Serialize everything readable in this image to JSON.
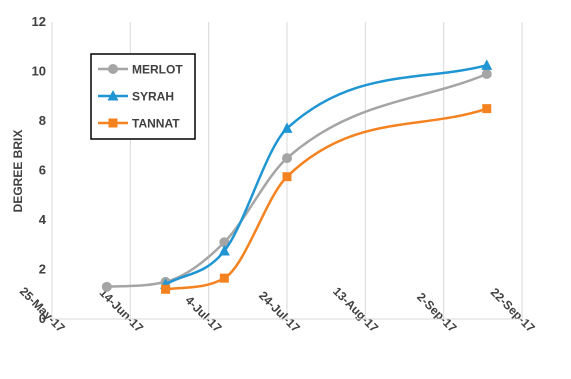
{
  "chart_data": {
    "type": "line",
    "ylabel": "DEGREE BRIX",
    "xlabel": "",
    "ylim": [
      0,
      12
    ],
    "yticks": [
      "0",
      "2",
      "4",
      "6",
      "8",
      "10",
      "12"
    ],
    "xlim": [
      "2017-05-25",
      "2017-09-22"
    ],
    "xticks": [
      {
        "date": "2017-05-25",
        "label": "25-May-17"
      },
      {
        "date": "2017-06-14",
        "label": "14-Jun-17"
      },
      {
        "date": "2017-07-04",
        "label": "4-Jul-17"
      },
      {
        "date": "2017-07-24",
        "label": "24-Jul-17"
      },
      {
        "date": "2017-08-13",
        "label": "13-Aug-17"
      },
      {
        "date": "2017-09-02",
        "label": "2-Sep-17"
      },
      {
        "date": "2017-09-22",
        "label": "22-Sep-17"
      }
    ],
    "grid": "vertical",
    "legend_position": "top-left",
    "smooth": true,
    "series": [
      {
        "name": "MERLOT",
        "color": "#A5A5A5",
        "marker": "circle",
        "points": [
          {
            "x": "2017-06-08",
            "y": 1.3
          },
          {
            "x": "2017-06-23",
            "y": 1.5
          },
          {
            "x": "2017-07-08",
            "y": 3.1
          },
          {
            "x": "2017-07-24",
            "y": 6.5
          },
          {
            "x": "2017-09-13",
            "y": 9.9
          }
        ]
      },
      {
        "name": "SYRAH",
        "color": "#1F96D3",
        "marker": "triangle",
        "points": [
          {
            "x": "2017-06-23",
            "y": 1.4
          },
          {
            "x": "2017-07-08",
            "y": 2.75
          },
          {
            "x": "2017-07-24",
            "y": 7.7
          },
          {
            "x": "2017-09-13",
            "y": 10.25
          }
        ]
      },
      {
        "name": "TANNAT",
        "color": "#F58220",
        "marker": "square",
        "points": [
          {
            "x": "2017-06-23",
            "y": 1.2
          },
          {
            "x": "2017-07-08",
            "y": 1.65
          },
          {
            "x": "2017-07-24",
            "y": 5.75
          },
          {
            "x": "2017-09-13",
            "y": 8.5
          }
        ]
      }
    ]
  }
}
